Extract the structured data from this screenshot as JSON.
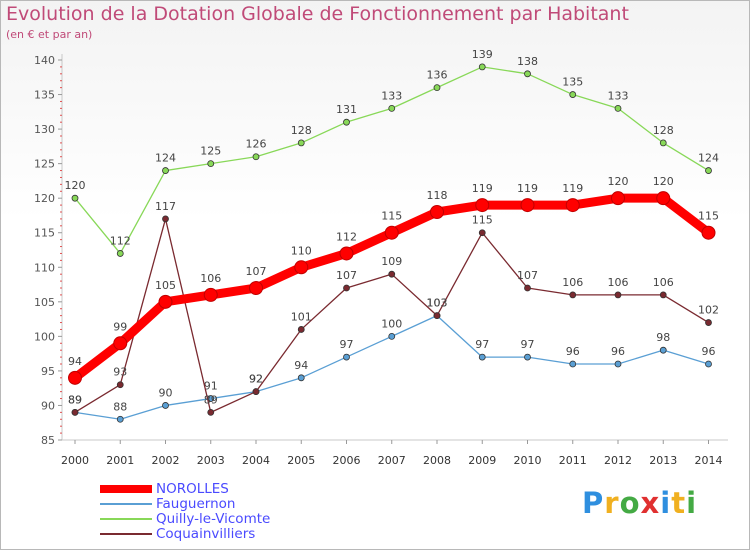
{
  "header": {
    "title": "Evolution de la Dotation Globale de Fonctionnement par Habitant",
    "subtitle": "(en € et par an)"
  },
  "logo": {
    "text": "Proxiti",
    "colors": [
      "#2f8fdf",
      "#f0b020",
      "#44aa44",
      "#e03030",
      "#2f8fdf",
      "#f0b020",
      "#44aa44"
    ]
  },
  "chart_data": {
    "type": "line",
    "x": [
      "2000",
      "2001",
      "2002",
      "2003",
      "2004",
      "2005",
      "2006",
      "2007",
      "2008",
      "2009",
      "2010",
      "2011",
      "2012",
      "2013",
      "2014"
    ],
    "ylim": [
      85,
      140
    ],
    "yticks": [
      85,
      90,
      95,
      100,
      105,
      110,
      115,
      120,
      125,
      130,
      135,
      140
    ],
    "grid": false,
    "legend_position": "bottom-left",
    "series": [
      {
        "name": "NOROLLES",
        "color": "#ff0000",
        "values": [
          94,
          99,
          105,
          106,
          107,
          110,
          112,
          115,
          118,
          119,
          119,
          119,
          120,
          120,
          115
        ],
        "labels": [
          "94",
          "99",
          "105",
          "106",
          "107",
          "110",
          "112",
          "115",
          "118",
          "119",
          "119",
          "119",
          "120",
          "120",
          "115"
        ]
      },
      {
        "name": "Fauguernon",
        "color": "#5a9fd4",
        "values": [
          89,
          88,
          90,
          91,
          92,
          94,
          97,
          100,
          103,
          97,
          97,
          96,
          96,
          98,
          96
        ],
        "labels": [
          "89",
          "88",
          "90",
          "91",
          "92",
          "94",
          "97",
          "100",
          "103",
          "97",
          "97",
          "96",
          "96",
          "98",
          "96"
        ]
      },
      {
        "name": "Quilly-le-Vicomte",
        "color": "#88d858",
        "values": [
          120,
          112,
          124,
          125,
          126,
          128,
          131,
          133,
          136,
          139,
          138,
          135,
          133,
          128,
          124
        ],
        "labels": [
          "120",
          "112",
          "124",
          "125",
          "126",
          "128",
          "131",
          "133",
          "136",
          "139",
          "138",
          "135",
          "133",
          "128",
          "124"
        ]
      },
      {
        "name": "Coquainvilliers",
        "color": "#7a2a30",
        "values": [
          89,
          93,
          117,
          89,
          92,
          101,
          107,
          109,
          103,
          115,
          107,
          106,
          106,
          106,
          102
        ],
        "labels": [
          "89",
          "93",
          "117",
          "89",
          "92",
          "101",
          "107",
          "109",
          "103",
          "115",
          "107",
          "106",
          "106",
          "106",
          "102"
        ]
      }
    ]
  }
}
